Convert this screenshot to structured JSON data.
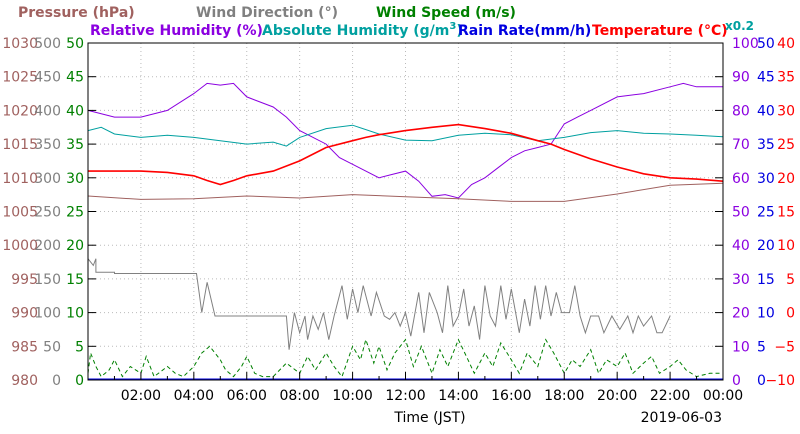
{
  "chart_data": {
    "type": "line",
    "legend": {
      "pressure": "Pressure (hPa)",
      "wind_direction": "Wind Direction (°)",
      "wind_speed": "Wind Speed (m/s)",
      "relative_humidity": "Relative Humidity (%)",
      "absolute_humidity": "Absolute Humidity (g/m",
      "absolute_humidity_sup": "3",
      "absolute_humidity_close": ")",
      "absolute_humidity_scale": "x0.2",
      "rain_rate": "Rain Rate(mm/h)",
      "temperature": "Temperature  (°C)"
    },
    "xlabel": "Time (JST)",
    "date": "2019-06-03",
    "x_range_hours": [
      0,
      24
    ],
    "x_ticks": [
      "02:00",
      "04:00",
      "06:00",
      "08:00",
      "10:00",
      "12:00",
      "14:00",
      "16:00",
      "18:00",
      "20:00",
      "22:00",
      "00:00"
    ],
    "axes": {
      "pressure": {
        "range": [
          980,
          1030
        ],
        "ticks": [
          "980",
          "985",
          "990",
          "995",
          "1000",
          "1005",
          "1010",
          "1015",
          "1020",
          "1025",
          "1030"
        ]
      },
      "wind_direction": {
        "range": [
          0,
          500
        ],
        "ticks": [
          "0",
          "50",
          "100",
          "150",
          "200",
          "250",
          "300",
          "350",
          "400",
          "450",
          "500"
        ]
      },
      "wind_speed": {
        "range": [
          0,
          50
        ],
        "ticks": [
          "0",
          "5",
          "10",
          "15",
          "20",
          "25",
          "30",
          "35",
          "40",
          "45",
          "50"
        ]
      },
      "relative_humidity": {
        "range": [
          0,
          100
        ],
        "ticks": [
          "0",
          "10",
          "20",
          "30",
          "40",
          "50",
          "60",
          "70",
          "80",
          "90",
          "100"
        ]
      },
      "rain_rate": {
        "range": [
          0,
          50
        ],
        "ticks": [
          "0",
          "5",
          "10",
          "15",
          "20",
          "25",
          "30",
          "35",
          "40",
          "45",
          "50"
        ]
      },
      "temperature": {
        "range": [
          -10,
          40
        ],
        "ticks": [
          "−10",
          "−5",
          "0",
          "5",
          "10",
          "15",
          "20",
          "25",
          "30",
          "35",
          "40"
        ]
      }
    },
    "colors": {
      "pressure": "#a0615f",
      "wind_direction": "#808080",
      "wind_speed": "#008000",
      "relative_humidity": "#8b00e0",
      "absolute_humidity": "#00a0a0",
      "rain_rate": "#0000e0",
      "temperature": "#ff0000",
      "grid": "#bbbbbb"
    },
    "grid": true,
    "series": [
      {
        "name": "Temperature  (°C)",
        "axis": "temperature",
        "style": "solid",
        "x": [
          0,
          1,
          2,
          3,
          4,
          4.5,
          5,
          5.5,
          6,
          7,
          8,
          9,
          10,
          10.5,
          11,
          12,
          13,
          14,
          15,
          16,
          17,
          17.5,
          18,
          19,
          20,
          21,
          22,
          23,
          24
        ],
        "y": [
          21,
          21,
          21,
          20.8,
          20.3,
          19.6,
          19,
          19.6,
          20.3,
          21,
          22.5,
          24.5,
          25.5,
          26,
          26.4,
          27,
          27.5,
          27.9,
          27.3,
          26.6,
          25.5,
          25,
          24.2,
          22.8,
          21.6,
          20.6,
          20,
          19.8,
          19.5
        ]
      },
      {
        "name": "Absolute Humidity (g/m3) x0.2",
        "axis": "temperature",
        "style": "solid",
        "x": [
          0,
          0.5,
          1,
          2,
          3,
          4,
          5,
          6,
          7,
          7.5,
          8,
          9,
          10,
          11,
          12,
          13,
          14,
          15,
          16,
          17,
          18,
          19,
          20,
          21,
          22,
          23,
          24
        ],
        "y": [
          27,
          27.5,
          26.5,
          26,
          26.3,
          26,
          25.5,
          25,
          25.3,
          24.7,
          26,
          27.3,
          27.8,
          26.5,
          25.6,
          25.5,
          26.3,
          26.6,
          26.4,
          25.5,
          26,
          26.7,
          27,
          26.6,
          26.5,
          26.3,
          26.1
        ]
      },
      {
        "name": "Relative Humidity (%)",
        "axis": "relative_humidity",
        "style": "solid",
        "x": [
          0,
          1,
          2,
          3,
          4,
          4.5,
          5,
          5.5,
          6,
          7,
          7.5,
          8,
          9,
          9.5,
          10,
          10.5,
          11,
          11.5,
          12,
          12.5,
          13,
          13.5,
          14,
          14.5,
          15,
          15.5,
          16,
          16.5,
          17,
          17.5,
          18,
          18.5,
          19,
          20,
          21,
          22,
          22.5,
          23,
          24
        ],
        "y": [
          80,
          78,
          78,
          80,
          85,
          88,
          87.5,
          88,
          84,
          81,
          78,
          74,
          70,
          66,
          64,
          62,
          60,
          61,
          62,
          59,
          54.5,
          55,
          54,
          58,
          60,
          63,
          66,
          68,
          69,
          70,
          76,
          78,
          80,
          84,
          85,
          87,
          88,
          87,
          87
        ]
      },
      {
        "name": "Pressure (hPa)",
        "axis": "pressure",
        "style": "solid",
        "x": [
          0,
          2,
          4,
          6,
          8,
          10,
          12,
          14,
          16,
          18,
          20,
          22,
          24
        ],
        "y": [
          1007.3,
          1006.8,
          1006.9,
          1007.3,
          1007.0,
          1007.5,
          1007.2,
          1006.9,
          1006.5,
          1006.5,
          1007.6,
          1008.9,
          1009.2
        ]
      },
      {
        "name": "Wind Direction (°)",
        "axis": "wind_direction",
        "style": "solid",
        "x": [
          0,
          0.2,
          0.3,
          0.3,
          1.0,
          1.0,
          3.5,
          4.1,
          4.2,
          4.3,
          4.5,
          4.8,
          6.0,
          7.5,
          7.6,
          7.8,
          8.0,
          8.2,
          8.3,
          8.5,
          8.7,
          8.9,
          9.1,
          9.3,
          9.6,
          9.8,
          10.0,
          10.2,
          10.4,
          10.7,
          10.9,
          11.2,
          11.4,
          11.6,
          11.8,
          12.0,
          12.2,
          12.5,
          12.7,
          12.9,
          13.2,
          13.4,
          13.6,
          13.8,
          14.0,
          14.2,
          14.4,
          14.6,
          14.8,
          15.0,
          15.2,
          15.4,
          15.6,
          15.8,
          16.0,
          16.3,
          16.5,
          16.7,
          16.9,
          17.1,
          17.3,
          17.5,
          17.7,
          17.9,
          18.2,
          18.4,
          18.6,
          18.8,
          19.0,
          19.3,
          19.5,
          19.8,
          20.1,
          20.4,
          20.6,
          20.8,
          21.0,
          21.3,
          21.5,
          21.7,
          22.0
        ],
        "y": [
          180,
          170,
          180,
          160,
          160,
          158,
          158,
          158,
          130,
          100,
          145,
          95,
          95,
          95,
          45,
          100,
          70,
          95,
          60,
          95,
          75,
          100,
          60,
          95,
          140,
          90,
          135,
          100,
          140,
          95,
          130,
          95,
          90,
          100,
          80,
          100,
          65,
          130,
          70,
          130,
          100,
          70,
          140,
          80,
          95,
          135,
          80,
          110,
          60,
          140,
          95,
          80,
          140,
          90,
          135,
          70,
          120,
          80,
          140,
          90,
          140,
          95,
          130,
          100,
          100,
          140,
          95,
          70,
          95,
          95,
          70,
          95,
          75,
          95,
          70,
          95,
          80,
          95,
          70,
          70,
          95
        ]
      },
      {
        "name": "Wind Speed (m/s)",
        "axis": "wind_speed",
        "style": "dashed",
        "x": [
          0,
          0.1,
          0.3,
          0.5,
          0.8,
          1,
          1.3,
          1.6,
          2,
          2.2,
          2.5,
          3,
          3.3,
          3.6,
          4,
          4.3,
          4.6,
          4.8,
          5,
          5.2,
          5.5,
          5.8,
          6,
          6.3,
          6.6,
          7,
          7.5,
          8,
          8.3,
          8.6,
          9,
          9.3,
          9.6,
          10,
          10.3,
          10.5,
          10.8,
          11,
          11.3,
          11.6,
          12,
          12.3,
          12.6,
          13,
          13.3,
          13.6,
          14,
          14.3,
          14.6,
          15,
          15.3,
          15.6,
          16,
          16.3,
          16.6,
          17,
          17.3,
          17.6,
          18,
          18.3,
          18.6,
          19,
          19.3,
          19.6,
          20,
          20.3,
          20.6,
          21,
          21.3,
          21.6,
          22,
          22.3,
          22.6,
          23,
          23.5,
          24
        ],
        "y": [
          1,
          4,
          2,
          0.5,
          1.5,
          3,
          0.5,
          2,
          1,
          3.5,
          0.5,
          2,
          1,
          0.5,
          2,
          4,
          5,
          4,
          3,
          1.5,
          0.5,
          2,
          3.5,
          1,
          0.5,
          0.5,
          2.5,
          1,
          3.5,
          1.5,
          4,
          2,
          0.5,
          5,
          3,
          6,
          2.5,
          5,
          1.5,
          4,
          6,
          2,
          5,
          1,
          4.5,
          2,
          6,
          3.5,
          1,
          4,
          2,
          5.5,
          3,
          1,
          4,
          2,
          6,
          4,
          1,
          3,
          2,
          4.5,
          1,
          3,
          2,
          4,
          1,
          2.5,
          3.5,
          1,
          2,
          3,
          1.5,
          0.5,
          1,
          1
        ]
      }
    ]
  }
}
